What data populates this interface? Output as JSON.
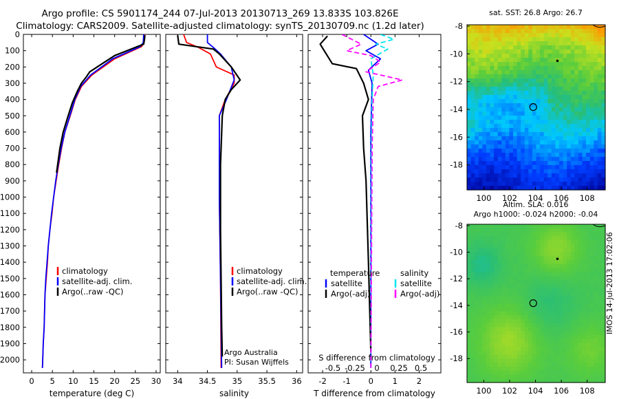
{
  "header": {
    "title_line1": "Argo profile: CS 5901174_244 07-Jul-2013 20130713_269 13.833S 103.826E",
    "title_line2": "Climatology: CARS2009. Satellite-adjusted climatology: synTS_20130709.nc (1.2d later)"
  },
  "side_stamp": "IMOS 14-Jul-2013 17:02:06",
  "colors": {
    "climatology": "#ff0000",
    "satellite": "#0000ff",
    "argo": "#000000",
    "sal_satellite": "#00e5ee",
    "sal_argo": "#ff00ff"
  },
  "chart_data": [
    {
      "type": "line",
      "name": "temperature profile",
      "xlabel": "temperature (deg C)",
      "ylabel": "",
      "xlim": [
        -2,
        31
      ],
      "ylim": [
        2080,
        0
      ],
      "xticks": [
        0,
        5,
        10,
        15,
        20,
        25,
        30
      ],
      "yticks": [
        0,
        100,
        200,
        300,
        400,
        500,
        600,
        700,
        800,
        900,
        1000,
        1100,
        1200,
        1300,
        1400,
        1500,
        1600,
        1700,
        1800,
        1900,
        2000
      ],
      "legend": [
        "climatology",
        "satellite-adj. clim.",
        "Argo(..raw -QC)"
      ],
      "series": [
        {
          "name": "climatology",
          "color": "#ff0000",
          "x": [
            27.2,
            27.1,
            26.5,
            20.0,
            14.5,
            12.0,
            10.5,
            9.3,
            8.0,
            7.2,
            6.5,
            5.9,
            5.3,
            4.9,
            4.4,
            4.0,
            3.8,
            3.5,
            3.2,
            3.0,
            2.8,
            2.6
          ],
          "y": [
            0,
            50,
            75,
            150,
            250,
            320,
            400,
            500,
            600,
            700,
            800,
            900,
            1000,
            1100,
            1200,
            1300,
            1400,
            1500,
            1600,
            1800,
            1900,
            2050
          ]
        },
        {
          "name": "satellite-adj. clim.",
          "color": "#0000ff",
          "x": [
            27.0,
            26.9,
            26.2,
            19.5,
            14.2,
            11.8,
            10.4,
            9.2,
            8.0,
            7.1,
            6.4,
            5.8,
            5.3,
            4.8,
            4.4,
            4.0,
            3.7,
            3.4,
            3.2,
            3.0,
            2.8,
            2.6
          ],
          "y": [
            0,
            50,
            75,
            150,
            250,
            320,
            400,
            500,
            600,
            700,
            800,
            900,
            1000,
            1100,
            1200,
            1300,
            1400,
            1500,
            1600,
            1800,
            1900,
            2050
          ]
        },
        {
          "name": "Argo(..raw -QC)",
          "color": "#000000",
          "x": [
            27.3,
            27.2,
            27.0,
            25.0,
            20.0,
            17.0,
            14.0,
            13.2,
            12.0,
            11.0,
            9.8,
            8.8,
            7.6,
            6.8,
            6.0
          ],
          "y": [
            5,
            30,
            60,
            80,
            130,
            180,
            230,
            260,
            300,
            350,
            420,
            500,
            600,
            700,
            850
          ]
        }
      ]
    },
    {
      "type": "line",
      "name": "salinity profile",
      "xlabel": "salinity",
      "ylabel": "",
      "xlim": [
        33.8,
        36.1
      ],
      "ylim": [
        2080,
        0
      ],
      "xticks": [
        34,
        34.5,
        35,
        35.5,
        36
      ],
      "legend": [
        "climatology",
        "satellite-adj. clim.",
        "Argo(..raw -QC)"
      ],
      "annotations": [
        "Argo Australia",
        "PI: Susan Wijffels"
      ],
      "series": [
        {
          "name": "climatology",
          "color": "#ff0000",
          "x": [
            34.1,
            34.15,
            34.35,
            34.55,
            34.65,
            34.95,
            34.95,
            34.8,
            34.7,
            34.7,
            34.72,
            34.73
          ],
          "y": [
            0,
            50,
            80,
            120,
            200,
            250,
            300,
            400,
            500,
            1000,
            1500,
            2050
          ]
        },
        {
          "name": "satellite-adj. clim.",
          "color": "#0000ff",
          "x": [
            34.5,
            34.5,
            34.6,
            34.72,
            34.9,
            34.95,
            34.82,
            34.7,
            34.7,
            34.72,
            34.74
          ],
          "y": [
            0,
            50,
            80,
            120,
            200,
            280,
            400,
            500,
            1000,
            1500,
            2050
          ]
        },
        {
          "name": "Argo(..raw -QC)",
          "color": "#000000",
          "x": [
            34.0,
            34.02,
            34.6,
            34.7,
            34.9,
            35.05,
            34.9,
            34.8,
            34.75,
            34.72,
            34.72,
            34.74,
            34.75
          ],
          "y": [
            5,
            60,
            90,
            120,
            200,
            280,
            340,
            400,
            500,
            800,
            1200,
            1800,
            1980
          ]
        }
      ]
    },
    {
      "type": "line",
      "name": "difference from climatology",
      "xlabel": "T difference from climatology",
      "xlabel_top": "S difference from climatology",
      "xlim": [
        -2.6,
        2.9
      ],
      "ylim": [
        2080,
        0
      ],
      "xticks": [
        -2,
        -1,
        0,
        1,
        2
      ],
      "xticks_top": [
        "-0.5",
        "-0.25",
        "0",
        "0.25",
        "0.5"
      ],
      "legend_headers": [
        "temperature",
        "salinity"
      ],
      "legend": [
        "satellite",
        "Argo(-adj)",
        "satellite",
        "Argo(-adj)"
      ],
      "series": [
        {
          "name": "T satellite",
          "color": "#0000ff",
          "x": [
            -0.3,
            0.3,
            -0.2,
            0.4,
            -0.1,
            0.05,
            0.0,
            0.0
          ],
          "y": [
            0,
            60,
            100,
            150,
            220,
            300,
            600,
            2050
          ]
        },
        {
          "name": "T Argo(-adj)",
          "color": "#000000",
          "x": [
            -1.8,
            -2.1,
            -1.6,
            -0.6,
            -0.3,
            -0.1,
            -0.35,
            -0.3,
            -0.2,
            -0.1,
            0.0
          ],
          "y": [
            10,
            60,
            180,
            210,
            300,
            400,
            500,
            700,
            900,
            1400,
            1950
          ]
        },
        {
          "name": "S satellite",
          "color": "#00e5ee",
          "x": [
            0.4,
            0.95,
            0.2,
            0.7,
            0.0,
            0.1,
            0.05,
            0.02,
            0.0
          ],
          "y": [
            0,
            30,
            60,
            90,
            150,
            250,
            400,
            700,
            2050
          ]
        },
        {
          "name": "S Argo(-adj)",
          "color": "#ff00ff",
          "x": [
            -1.2,
            -0.4,
            -1.0,
            0.0,
            0.4,
            -0.2,
            1.3,
            0.3,
            0.1,
            0.05,
            0.0
          ],
          "y": [
            0,
            60,
            100,
            130,
            170,
            230,
            280,
            320,
            400,
            700,
            2050
          ]
        }
      ]
    },
    {
      "type": "heatmap",
      "name": "SST map",
      "title": "sat. SST: 26.8 Argo: 26.7",
      "xlim": [
        98.7,
        109.4
      ],
      "ylim": [
        -19.8,
        -7.9
      ],
      "xticks": [
        100,
        102,
        104,
        106,
        108
      ],
      "yticks": [
        -8,
        -10,
        -12,
        -14,
        -16,
        -18
      ],
      "argo_position": [
        103.826,
        -13.833
      ],
      "marker": [
        105.7,
        -10.5
      ]
    },
    {
      "type": "heatmap",
      "name": "SLA map",
      "title": "Altim. SLA: 0.016",
      "subtitle": "Argo h1000: -0.024 h2000: -0.04",
      "xlim": [
        98.7,
        109.4
      ],
      "ylim": [
        -19.8,
        -7.9
      ],
      "xticks": [
        100,
        102,
        104,
        106,
        108
      ],
      "yticks": [
        -8,
        -10,
        -12,
        -14,
        -16,
        -18
      ],
      "argo_position": [
        103.826,
        -13.833
      ],
      "marker": [
        105.7,
        -10.5
      ]
    }
  ]
}
